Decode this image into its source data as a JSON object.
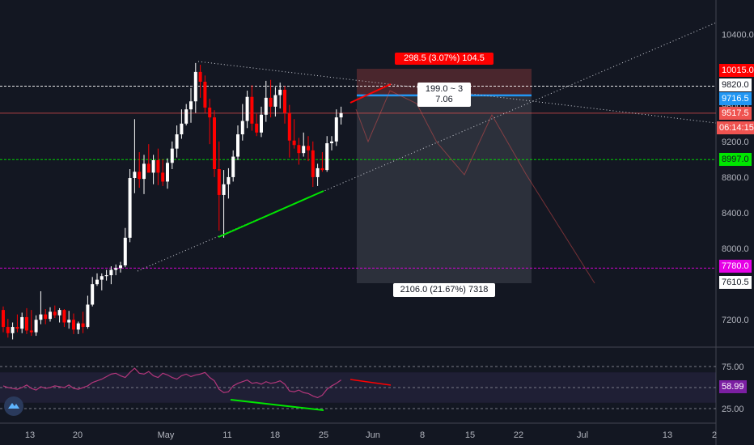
{
  "chart_data": {
    "type": "candlestick",
    "price_axis": {
      "ylim": [
        7000,
        10550
      ],
      "ticks": [
        7200.0,
        7600.0,
        8000.0,
        8400.0,
        8800.0,
        9200.0,
        9600.0,
        10000.0,
        10400.0
      ],
      "tick_labels": [
        "7200.0",
        "7600.0",
        "8000.0",
        "8400.0",
        "8800.0",
        "9200.0",
        "9600.0",
        "10000.0",
        "10400.0"
      ]
    },
    "time_axis": {
      "tick_labels": [
        "13",
        "20",
        "May",
        "11",
        "18",
        "25",
        "Jun",
        "8",
        "15",
        "22",
        "Jul",
        "13",
        "2"
      ]
    },
    "price_tags": {
      "a": {
        "label": "10015.0",
        "value": 10015.0,
        "color": "#ff0000"
      },
      "b": {
        "label": "9820.0",
        "value": 9820.0,
        "color": "#ffffff"
      },
      "c": {
        "label": "9716.5",
        "value": 9716.5,
        "color": "#2196f3"
      },
      "d": {
        "label": "9517.5",
        "value": 9517.5,
        "color": "#ef5350"
      },
      "e": {
        "label": "06:14:15",
        "value": 9386.0,
        "color": "#ef5350"
      },
      "f": {
        "label": "8997.0",
        "value": 8997.0,
        "color": "#00e600"
      },
      "g": {
        "label": "7780.0",
        "value": 7780.0,
        "color": "#e600e6"
      },
      "h": {
        "label": "7610.5",
        "value": 7610.5,
        "color": "#ffffff"
      }
    },
    "horizontal_lines": [
      {
        "value": 9820.0,
        "color": "#ffffff",
        "style": "dashed"
      },
      {
        "value": 9517.5,
        "color": "#ef5350",
        "style": "solid"
      },
      {
        "value": 8997.0,
        "color": "#00e600",
        "style": "dashed"
      },
      {
        "value": 7780.0,
        "color": "#e600e6",
        "style": "dashed"
      }
    ],
    "position_tool": {
      "entry": 9716.5,
      "target": 10015.0,
      "stop": 7610.5,
      "top_label": "298.5 (3.07%) 104.5",
      "ratio_label": "199.0 ~ 3",
      "ratio_label_2": "7.06",
      "bottom_label": "2106.0 (21.67%) 7318"
    },
    "candles": [
      {
        "o": 7310,
        "h": 7350,
        "l": 7060,
        "c": 7120
      },
      {
        "o": 7120,
        "h": 7210,
        "l": 7000,
        "c": 7050
      },
      {
        "o": 7050,
        "h": 7170,
        "l": 6980,
        "c": 7120
      },
      {
        "o": 7120,
        "h": 7260,
        "l": 7060,
        "c": 7100
      },
      {
        "o": 7100,
        "h": 7280,
        "l": 7050,
        "c": 7230
      },
      {
        "o": 7230,
        "h": 7330,
        "l": 7040,
        "c": 7080
      },
      {
        "o": 7080,
        "h": 7310,
        "l": 7020,
        "c": 7060
      },
      {
        "o": 7060,
        "h": 7250,
        "l": 7020,
        "c": 7200
      },
      {
        "o": 7200,
        "h": 7520,
        "l": 7150,
        "c": 7260
      },
      {
        "o": 7260,
        "h": 7320,
        "l": 7150,
        "c": 7210
      },
      {
        "o": 7210,
        "h": 7340,
        "l": 7180,
        "c": 7290
      },
      {
        "o": 7290,
        "h": 7360,
        "l": 7220,
        "c": 7250
      },
      {
        "o": 7250,
        "h": 7330,
        "l": 7170,
        "c": 7310
      },
      {
        "o": 7310,
        "h": 7320,
        "l": 7120,
        "c": 7170
      },
      {
        "o": 7170,
        "h": 7300,
        "l": 7100,
        "c": 7200
      },
      {
        "o": 7200,
        "h": 7270,
        "l": 7040,
        "c": 7090
      },
      {
        "o": 7090,
        "h": 7180,
        "l": 7040,
        "c": 7160
      },
      {
        "o": 7160,
        "h": 7290,
        "l": 7050,
        "c": 7120
      },
      {
        "o": 7120,
        "h": 7470,
        "l": 7100,
        "c": 7370
      },
      {
        "o": 7370,
        "h": 7680,
        "l": 7350,
        "c": 7600
      },
      {
        "o": 7600,
        "h": 7720,
        "l": 7580,
        "c": 7650
      },
      {
        "o": 7650,
        "h": 7720,
        "l": 7530,
        "c": 7690
      },
      {
        "o": 7690,
        "h": 7760,
        "l": 7640,
        "c": 7700
      },
      {
        "o": 7700,
        "h": 7800,
        "l": 7600,
        "c": 7760
      },
      {
        "o": 7760,
        "h": 7820,
        "l": 7700,
        "c": 7780
      },
      {
        "o": 7780,
        "h": 7850,
        "l": 7730,
        "c": 7810
      },
      {
        "o": 7810,
        "h": 8230,
        "l": 7790,
        "c": 8120
      },
      {
        "o": 8120,
        "h": 8890,
        "l": 8070,
        "c": 8790
      },
      {
        "o": 8790,
        "h": 9450,
        "l": 8620,
        "c": 8860
      },
      {
        "o": 8860,
        "h": 9080,
        "l": 8680,
        "c": 8780
      },
      {
        "o": 8780,
        "h": 9050,
        "l": 8610,
        "c": 8950
      },
      {
        "o": 8950,
        "h": 9170,
        "l": 8850,
        "c": 8850
      },
      {
        "o": 8850,
        "h": 9050,
        "l": 8720,
        "c": 8990
      },
      {
        "o": 8990,
        "h": 9120,
        "l": 8710,
        "c": 8850
      },
      {
        "o": 8850,
        "h": 9000,
        "l": 8700,
        "c": 8750
      },
      {
        "o": 8750,
        "h": 9010,
        "l": 8670,
        "c": 8960
      },
      {
        "o": 8960,
        "h": 9200,
        "l": 8890,
        "c": 9120
      },
      {
        "o": 9120,
        "h": 9380,
        "l": 9020,
        "c": 9280
      },
      {
        "o": 9280,
        "h": 9560,
        "l": 9230,
        "c": 9400
      },
      {
        "o": 9400,
        "h": 9620,
        "l": 9380,
        "c": 9560
      },
      {
        "o": 9560,
        "h": 9800,
        "l": 9410,
        "c": 9650
      },
      {
        "o": 9650,
        "h": 10080,
        "l": 9520,
        "c": 9980
      },
      {
        "o": 9980,
        "h": 10060,
        "l": 9690,
        "c": 9870
      },
      {
        "o": 9870,
        "h": 9940,
        "l": 9520,
        "c": 9580
      },
      {
        "o": 9580,
        "h": 9680,
        "l": 9170,
        "c": 9470
      },
      {
        "o": 9470,
        "h": 9550,
        "l": 8800,
        "c": 8890
      },
      {
        "o": 8890,
        "h": 9200,
        "l": 8200,
        "c": 8600
      },
      {
        "o": 8600,
        "h": 8880,
        "l": 8120,
        "c": 8720
      },
      {
        "o": 8720,
        "h": 8900,
        "l": 8560,
        "c": 8800
      },
      {
        "o": 8800,
        "h": 9100,
        "l": 8750,
        "c": 9030
      },
      {
        "o": 9030,
        "h": 9380,
        "l": 8990,
        "c": 9280
      },
      {
        "o": 9280,
        "h": 9620,
        "l": 9210,
        "c": 9430
      },
      {
        "o": 9430,
        "h": 9770,
        "l": 9350,
        "c": 9700
      },
      {
        "o": 9700,
        "h": 9830,
        "l": 9320,
        "c": 9400
      },
      {
        "o": 9400,
        "h": 9510,
        "l": 9260,
        "c": 9300
      },
      {
        "o": 9300,
        "h": 9590,
        "l": 9250,
        "c": 9500
      },
      {
        "o": 9500,
        "h": 9880,
        "l": 9420,
        "c": 9690
      },
      {
        "o": 9690,
        "h": 9890,
        "l": 9470,
        "c": 9590
      },
      {
        "o": 9590,
        "h": 9810,
        "l": 9480,
        "c": 9720
      },
      {
        "o": 9720,
        "h": 9860,
        "l": 9570,
        "c": 9780
      },
      {
        "o": 9780,
        "h": 9820,
        "l": 9400,
        "c": 9520
      },
      {
        "o": 9520,
        "h": 9610,
        "l": 9020,
        "c": 9210
      },
      {
        "o": 9210,
        "h": 9450,
        "l": 9120,
        "c": 9160
      },
      {
        "o": 9160,
        "h": 9240,
        "l": 8940,
        "c": 9070
      },
      {
        "o": 9070,
        "h": 9300,
        "l": 9030,
        "c": 9150
      },
      {
        "o": 9150,
        "h": 9260,
        "l": 8980,
        "c": 9100
      },
      {
        "o": 9100,
        "h": 9200,
        "l": 8690,
        "c": 8800
      },
      {
        "o": 8800,
        "h": 8950,
        "l": 8700,
        "c": 8900
      },
      {
        "o": 8900,
        "h": 9080,
        "l": 8860,
        "c": 8880
      },
      {
        "o": 8880,
        "h": 9260,
        "l": 8860,
        "c": 9180
      },
      {
        "o": 9180,
        "h": 9260,
        "l": 9100,
        "c": 9200
      },
      {
        "o": 9200,
        "h": 9560,
        "l": 9150,
        "c": 9470
      },
      {
        "o": 9470,
        "h": 9590,
        "l": 9390,
        "c": 9517.5
      }
    ],
    "rsi": {
      "label": "58.99",
      "value": 58.99,
      "levels": {
        "upper": "75.00",
        "middle": "50.00",
        "lower": "25.00"
      },
      "values": [
        52,
        50,
        49,
        48,
        50,
        53,
        49,
        47,
        51,
        49,
        50,
        52,
        51,
        50,
        53,
        49,
        48,
        50,
        52,
        56,
        58,
        60,
        63,
        66,
        67,
        64,
        62,
        68,
        73,
        67,
        66,
        69,
        64,
        62,
        67,
        65,
        62,
        60,
        64,
        66,
        63,
        65,
        66,
        68,
        62,
        58,
        48,
        44,
        45,
        52,
        55,
        57,
        59,
        55,
        56,
        54,
        57,
        55,
        56,
        58,
        54,
        46,
        45,
        47,
        44,
        43,
        40,
        38,
        41,
        48,
        52,
        55,
        59
      ]
    },
    "rsi_value_line_color": "#b2367a"
  }
}
